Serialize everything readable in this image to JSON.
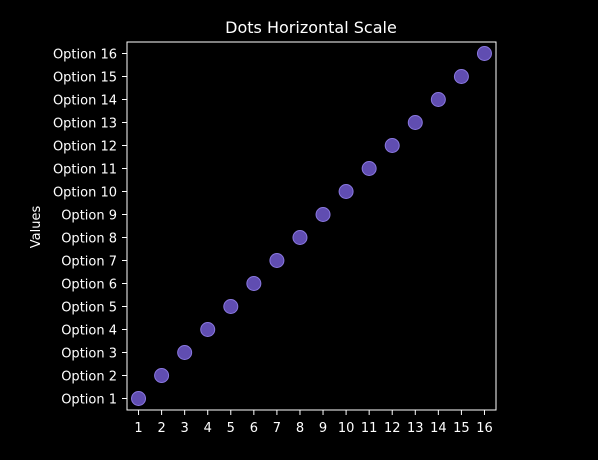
{
  "chart_data": {
    "type": "scatter",
    "title": "Dots Horizontal Scale",
    "xlabel": "",
    "ylabel": "Values",
    "x_ticks": [
      "1",
      "2",
      "3",
      "4",
      "5",
      "6",
      "7",
      "8",
      "9",
      "10",
      "11",
      "12",
      "13",
      "14",
      "15",
      "16"
    ],
    "categories": [
      "Option 1",
      "Option 2",
      "Option 3",
      "Option 4",
      "Option 5",
      "Option 6",
      "Option 7",
      "Option 8",
      "Option 9",
      "Option 10",
      "Option 11",
      "Option 12",
      "Option 13",
      "Option 14",
      "Option 15",
      "Option 16"
    ],
    "series": [
      {
        "values": [
          1,
          2,
          3,
          4,
          5,
          6,
          7,
          8,
          9,
          10,
          11,
          12,
          13,
          14,
          15,
          16
        ]
      }
    ],
    "xlim": [
      0.5,
      16.5
    ],
    "grid": false,
    "colors": {
      "background": "#000000",
      "marker_fill": "#6a55c4",
      "marker_stroke": "#8a78e0",
      "axis": "#ffffff",
      "text": "#ffffff"
    }
  }
}
